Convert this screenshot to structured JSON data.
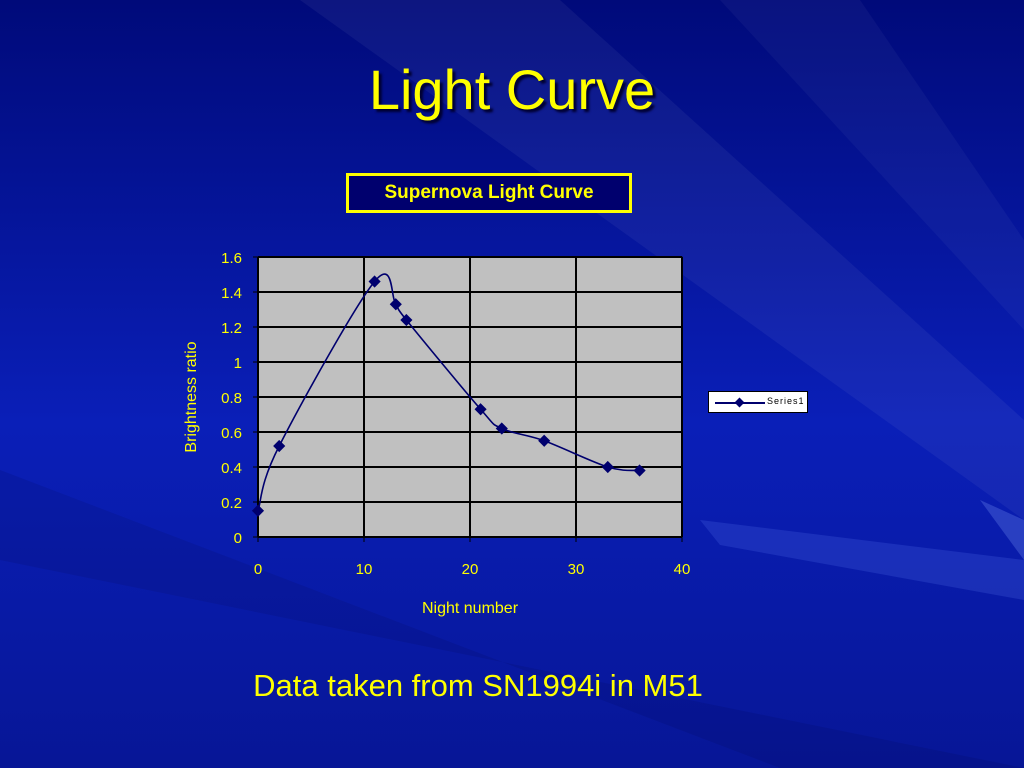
{
  "slide": {
    "title": "Light Curve",
    "caption": "Data taken from SN1994i in M51"
  },
  "colors": {
    "background": "#0a1fb8",
    "title_text": "#ffff00",
    "plot_area": "#c0c0c0",
    "series_line": "#00006e",
    "axis_text": "#ffff00"
  },
  "chart_data": {
    "type": "scatter",
    "title": "Supernova Light Curve",
    "xlabel": "Night number",
    "ylabel": "Brightness ratio",
    "xlim": [
      0,
      40
    ],
    "ylim": [
      0,
      1.6
    ],
    "x_ticks": [
      "0",
      "10",
      "20",
      "30",
      "40"
    ],
    "y_ticks": [
      "0",
      "0.2",
      "0.4",
      "0.6",
      "0.8",
      "1",
      "1.2",
      "1.4",
      "1.6"
    ],
    "grid": true,
    "smoothed_line": true,
    "marker": "diamond",
    "legend": "right",
    "series": [
      {
        "name": "Series1",
        "x": [
          0,
          2,
          11,
          13,
          14,
          21,
          23,
          27,
          33,
          36
        ],
        "y": [
          0.15,
          0.52,
          1.46,
          1.33,
          1.24,
          0.73,
          0.62,
          0.55,
          0.4,
          0.38
        ]
      }
    ]
  }
}
